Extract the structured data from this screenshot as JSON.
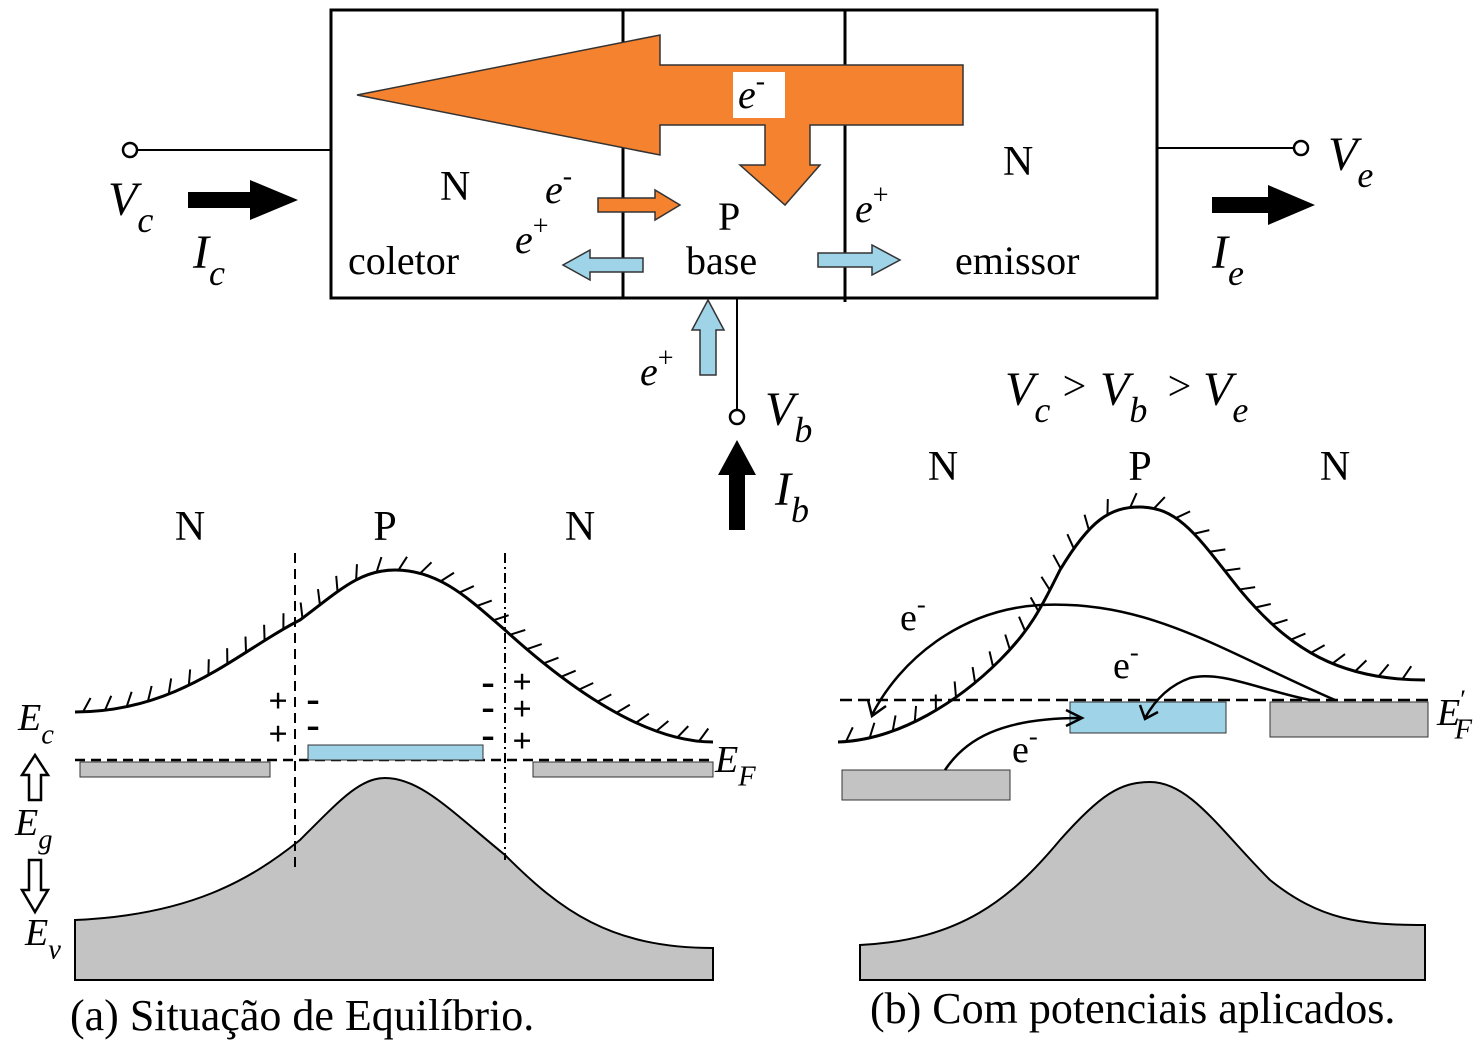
{
  "transistor": {
    "collector": {
      "type": "N",
      "name": "coletor"
    },
    "base": {
      "type": "P",
      "name": "base"
    },
    "emitter": {
      "type": "N",
      "name": "emissor"
    },
    "electron_flow": {
      "base": "e",
      "sup": "-"
    },
    "collector_junction": [
      {
        "base": "e",
        "sup": "-"
      },
      {
        "base": "e",
        "sup": "+"
      }
    ],
    "emitter_junction": {
      "base": "e",
      "sup": "+"
    },
    "base_lead": {
      "base": "e",
      "sup": "+"
    },
    "terminals": {
      "collector": {
        "voltage": {
          "base": "V",
          "sub": "c"
        },
        "current": {
          "base": "I",
          "sub": "c"
        }
      },
      "emitter": {
        "voltage": {
          "base": "V",
          "sub": "e"
        },
        "current": {
          "base": "I",
          "sub": "e"
        }
      },
      "base": {
        "voltage": {
          "base": "V",
          "sub": "b"
        },
        "current": {
          "base": "I",
          "sub": "b"
        }
      }
    }
  },
  "condition": {
    "terms": [
      {
        "base": "V",
        "sub": "c"
      },
      {
        "base": "V",
        "sub": "b"
      },
      {
        "base": "V",
        "sub": "e"
      }
    ],
    "operator": ">"
  },
  "diagrams": [
    {
      "regions": [
        "N",
        "P",
        "N"
      ],
      "conduction": {
        "base": "E",
        "sub": "c"
      },
      "gap": {
        "base": "E",
        "sub": "g"
      },
      "valence": {
        "base": "E",
        "sub": "v"
      },
      "fermi": {
        "base": "E",
        "sub": "F"
      },
      "charges": {
        "positive": "+",
        "negative": "-"
      },
      "caption": "(a) Situação de Equilíbrio."
    },
    {
      "regions": [
        "N",
        "P",
        "N"
      ],
      "fermi": {
        "base": "E",
        "sub": "F",
        "sup": "′"
      },
      "electrons": [
        {
          "base": "e",
          "sup": "-"
        },
        {
          "base": "e",
          "sup": "-"
        },
        {
          "base": "e",
          "sup": "-"
        }
      ],
      "caption": "(b) Com potenciais aplicados."
    }
  ]
}
